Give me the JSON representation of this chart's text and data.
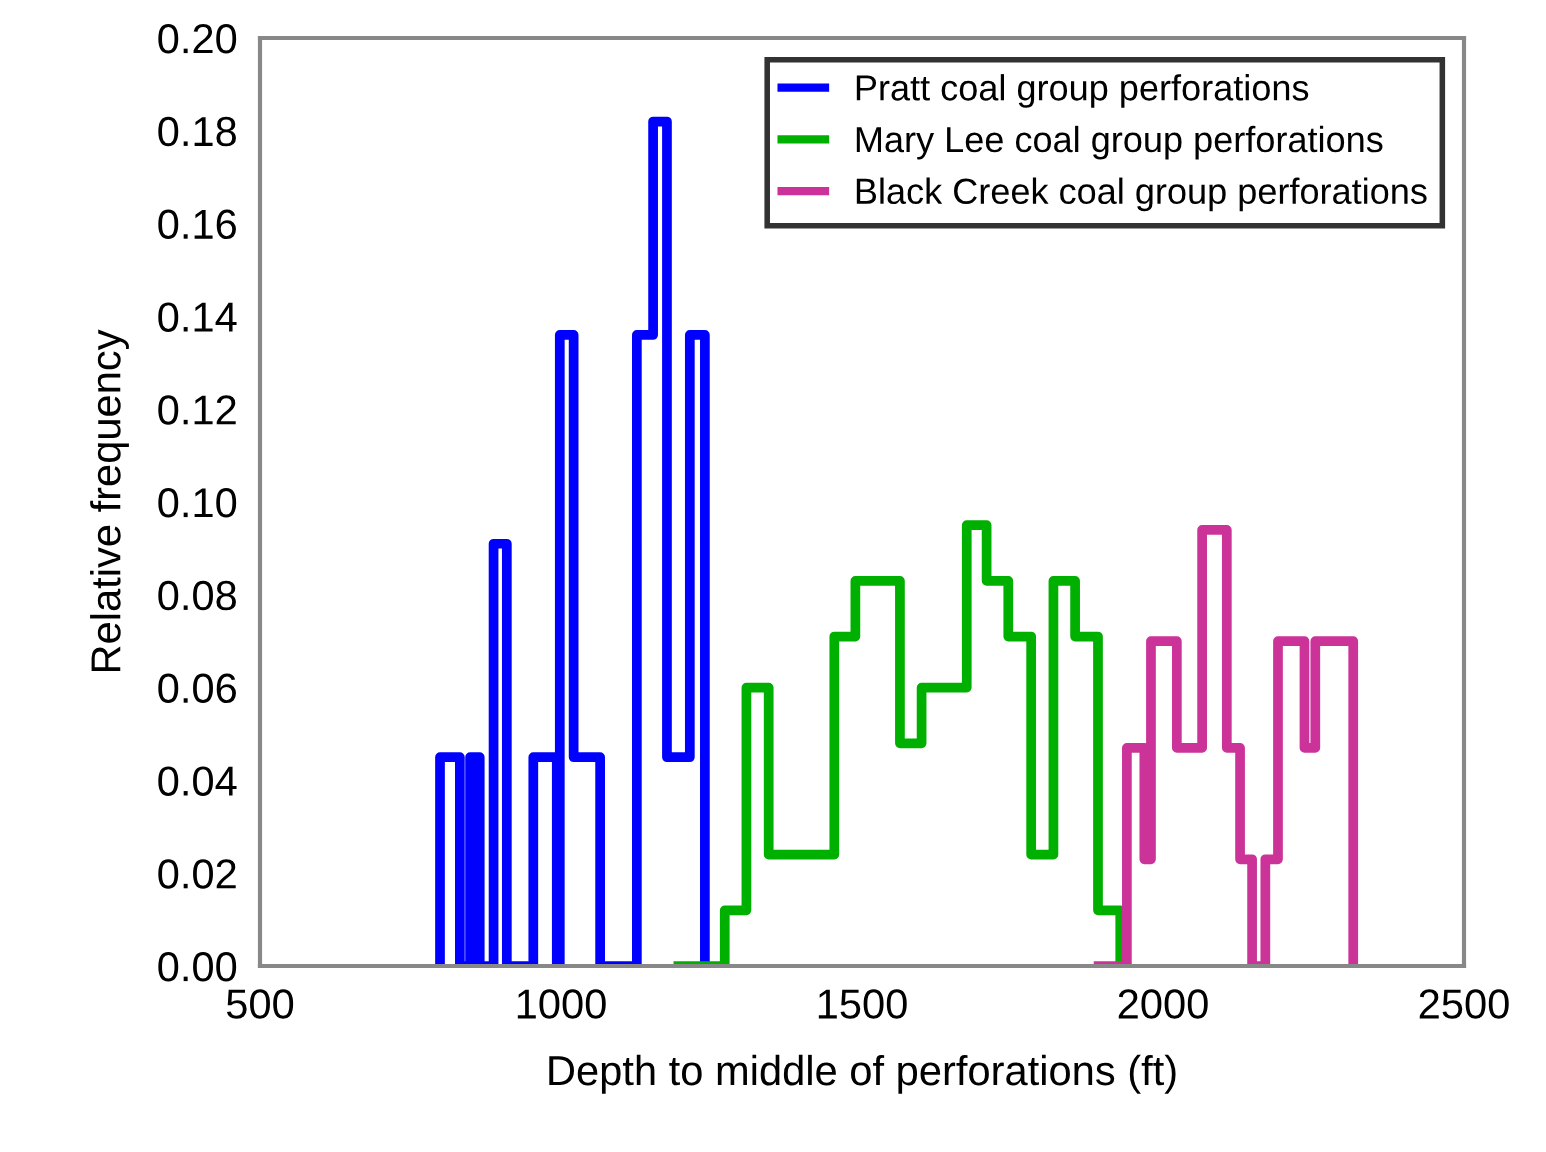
{
  "chart_data": {
    "type": "step",
    "xlabel": "Depth to middle of perforations (ft)",
    "ylabel": "Relative frequency",
    "xlim": [
      500,
      2500
    ],
    "xticks": [
      500,
      1000,
      1500,
      2000,
      2500
    ],
    "ylim": [
      0,
      0.2
    ],
    "yticks": [
      {
        "value": 0,
        "label": "0.00"
      },
      {
        "value": 0.02,
        "label": "0.02"
      },
      {
        "value": 0.04,
        "label": "0.04"
      },
      {
        "value": 0.06,
        "label": "0.06"
      },
      {
        "value": 0.08,
        "label": "0.08"
      },
      {
        "value": 0.1,
        "label": "0.10"
      },
      {
        "value": 0.12,
        "label": "0.12"
      },
      {
        "value": 0.14,
        "label": "0.14"
      },
      {
        "value": 0.16,
        "label": "0.16"
      },
      {
        "value": 0.18,
        "label": "0.18"
      },
      {
        "value": 0.2,
        "label": "0.20"
      }
    ],
    "grid": false,
    "legend": "top right",
    "marker": "none",
    "line_style": "solid",
    "series": [
      {
        "name": "Pratt coal group perforations",
        "color": "#0000ff",
        "x": [
          799,
          799,
          832,
          849,
          865,
          888,
          910,
          954,
          993,
          998,
          1021,
          1065,
          1126,
          1153,
          1176,
          1214,
          1239
        ],
        "values": [
          0,
          0.045,
          0,
          0.045,
          0,
          0.091,
          0,
          0.045,
          0,
          0.136,
          0.045,
          0,
          0.136,
          0.182,
          0.045,
          0.136,
          0
        ]
      },
      {
        "name": "Mary Lee coal group perforations",
        "color": "#00b000",
        "x": [
          1195,
          1272,
          1308,
          1345,
          1454,
          1489,
          1563,
          1599,
          1674,
          1707,
          1743,
          1781,
          1818,
          1854,
          1892,
          1929
        ],
        "values": [
          0,
          0.012,
          0.06,
          0.024,
          0.071,
          0.083,
          0.048,
          0.06,
          0.095,
          0.083,
          0.071,
          0.024,
          0.083,
          0.071,
          0.012,
          0
        ]
      },
      {
        "name": "Black Creek coal group perforations",
        "color": "#cc3399",
        "x": [
          1893,
          1940,
          1969,
          1980,
          2023,
          2065,
          2106,
          2128,
          2148,
          2170,
          2191,
          2235,
          2253,
          2316
        ],
        "values": [
          0,
          0.047,
          0.023,
          0.07,
          0.047,
          0.094,
          0.047,
          0.023,
          0,
          0.023,
          0.07,
          0.047,
          0.07,
          0
        ]
      }
    ]
  }
}
